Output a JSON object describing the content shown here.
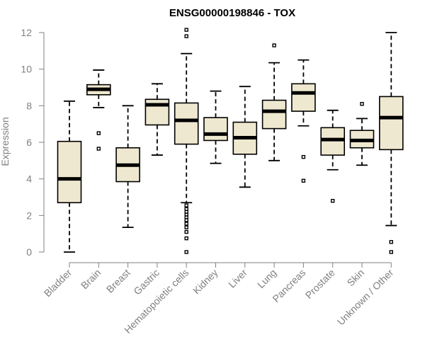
{
  "chart_data": {
    "type": "boxplot",
    "title": "ENSG00000198846 - TOX",
    "xlabel": "",
    "ylabel": "Expression",
    "ylim": [
      0,
      12
    ],
    "yticks": [
      0,
      2,
      4,
      6,
      8,
      10,
      12
    ],
    "box_color": "#efe8d0",
    "categories": [
      "Bladder",
      "Brain",
      "Breast",
      "Gastric",
      "Hematopoietic cells",
      "Kidney",
      "Liver",
      "Lung",
      "Pancreas",
      "Prostate",
      "Skin",
      "Unknown / Other"
    ],
    "boxes": [
      {
        "name": "Bladder",
        "low": 0.0,
        "q1": 2.7,
        "median": 4.0,
        "q3": 6.05,
        "high": 8.25,
        "outliers": []
      },
      {
        "name": "Brain",
        "low": 7.9,
        "q1": 8.6,
        "median": 8.9,
        "q3": 9.15,
        "high": 9.95,
        "outliers": [
          6.5,
          5.65
        ]
      },
      {
        "name": "Breast",
        "low": 1.35,
        "q1": 3.85,
        "median": 4.75,
        "q3": 5.7,
        "high": 8.0,
        "outliers": []
      },
      {
        "name": "Gastric",
        "low": 5.3,
        "q1": 6.95,
        "median": 8.05,
        "q3": 8.35,
        "high": 9.2,
        "outliers": []
      },
      {
        "name": "Hematopoietic cells",
        "low": 2.7,
        "q1": 5.9,
        "median": 7.2,
        "q3": 8.15,
        "high": 10.85,
        "outliers": [
          12.15,
          11.8,
          2.55,
          2.35,
          2.2,
          2.05,
          1.9,
          1.75,
          1.55,
          1.35,
          1.1,
          0.75,
          0.0
        ]
      },
      {
        "name": "Kidney",
        "low": 4.85,
        "q1": 6.1,
        "median": 6.45,
        "q3": 7.35,
        "high": 8.8,
        "outliers": []
      },
      {
        "name": "Liver",
        "low": 3.55,
        "q1": 5.35,
        "median": 6.25,
        "q3": 7.1,
        "high": 9.05,
        "outliers": []
      },
      {
        "name": "Lung",
        "low": 5.0,
        "q1": 6.75,
        "median": 7.7,
        "q3": 8.3,
        "high": 10.35,
        "outliers": [
          11.3
        ]
      },
      {
        "name": "Pancreas",
        "low": 6.9,
        "q1": 7.7,
        "median": 8.7,
        "q3": 9.2,
        "high": 10.5,
        "outliers": [
          5.2,
          3.9
        ]
      },
      {
        "name": "Prostate",
        "low": 4.5,
        "q1": 5.3,
        "median": 6.15,
        "q3": 6.8,
        "high": 7.75,
        "outliers": [
          2.8
        ]
      },
      {
        "name": "Skin",
        "low": 4.75,
        "q1": 5.7,
        "median": 6.1,
        "q3": 6.65,
        "high": 7.3,
        "outliers": [
          8.1
        ]
      },
      {
        "name": "Unknown / Other",
        "low": 1.45,
        "q1": 5.6,
        "median": 7.35,
        "q3": 8.5,
        "high": 12.0,
        "outliers": [
          0.55,
          0.0
        ]
      }
    ]
  }
}
